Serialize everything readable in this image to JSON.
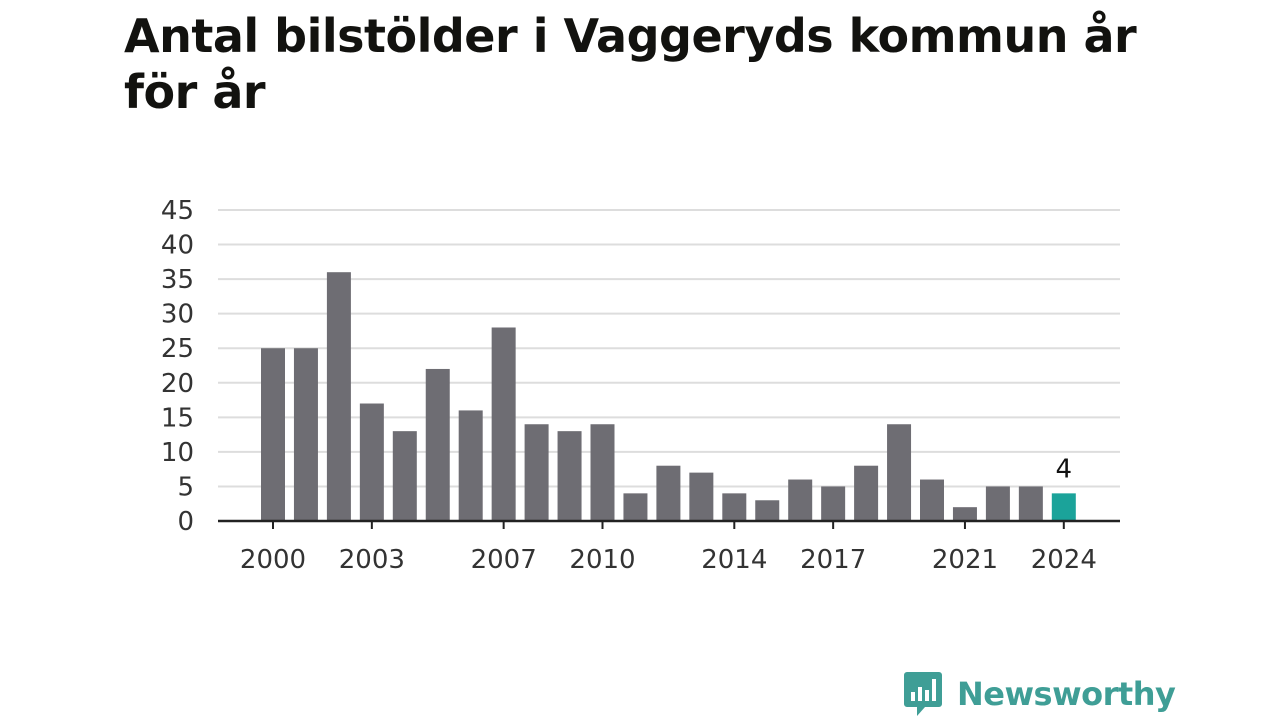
{
  "title": "Antal bilstölder i Vaggeryds kommun år för år",
  "brand": {
    "name": "Newsworthy",
    "logo_icon": "bar-chart-speech-bubble-icon"
  },
  "colors": {
    "bar": "#6e6d73",
    "highlight": "#1ba39a",
    "grid": "#dddddd",
    "axis": "#222222"
  },
  "chart_data": {
    "type": "bar",
    "title": "Antal bilstölder i Vaggeryds kommun år för år",
    "xlabel": "",
    "ylabel": "",
    "ylim": [
      0,
      45
    ],
    "y_ticks": [
      0,
      5,
      10,
      15,
      20,
      25,
      30,
      35,
      40,
      45
    ],
    "categories": [
      "2000",
      "2001",
      "2002",
      "2003",
      "2004",
      "2005",
      "2006",
      "2007",
      "2008",
      "2009",
      "2010",
      "2011",
      "2012",
      "2013",
      "2014",
      "2015",
      "2016",
      "2017",
      "2018",
      "2019",
      "2020",
      "2021",
      "2022",
      "2023",
      "2024"
    ],
    "values": [
      25,
      25,
      36,
      17,
      13,
      22,
      16,
      28,
      14,
      13,
      14,
      4,
      8,
      7,
      4,
      3,
      6,
      5,
      8,
      14,
      6,
      2,
      5,
      5,
      4
    ],
    "x_tick_labels": [
      "2000",
      "2003",
      "2007",
      "2010",
      "2014",
      "2017",
      "2021",
      "2024"
    ],
    "highlight_category": "2024",
    "annotations": [
      {
        "category": "2024",
        "text": "4"
      }
    ],
    "grid": true,
    "legend": "none"
  }
}
